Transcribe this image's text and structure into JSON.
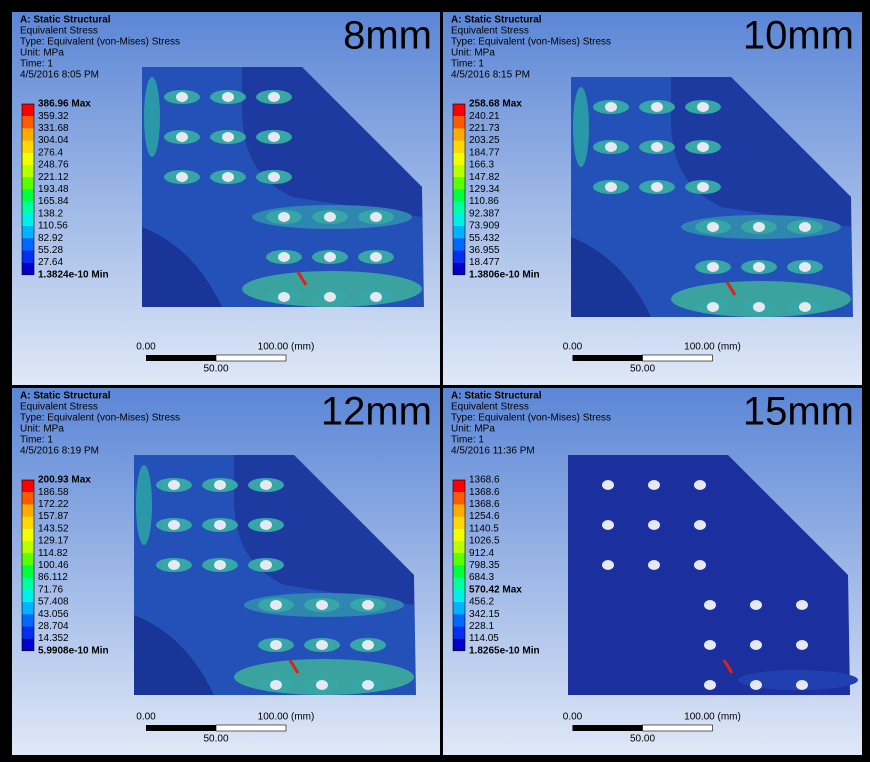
{
  "panels": [
    {
      "header": {
        "title": "A: Static Structural",
        "lines": [
          "Equivalent Stress",
          "Type: Equivalent (von-Mises) Stress",
          "Unit: MPa",
          "Time: 1",
          "4/5/2016 8:05 PM"
        ]
      },
      "label": "8mm",
      "legend": [
        "386.96 Max",
        "359.32",
        "331.68",
        "304.04",
        "276.4",
        "248.76",
        "221.12",
        "193.48",
        "165.84",
        "138.2",
        "110.56",
        "82.92",
        "55.28",
        "27.64",
        "1.3824e-10 Min"
      ],
      "scale": {
        "start": "0.00",
        "end": "100.00 (mm)",
        "mid": "50.00"
      }
    },
    {
      "header": {
        "title": "A: Static Structural",
        "lines": [
          "Equivalent Stress",
          "Type: Equivalent (von-Mises) Stress",
          "Unit: MPa",
          "Time: 1",
          "4/5/2016 8:15 PM"
        ]
      },
      "label": "10mm",
      "legend": [
        "258.68 Max",
        "240.21",
        "221.73",
        "203.25",
        "184.77",
        "166.3",
        "147.82",
        "129.34",
        "110.86",
        "92.387",
        "73.909",
        "55.432",
        "36.955",
        "18.477",
        "1.3806e-10 Min"
      ],
      "scale": {
        "start": "0.00",
        "end": "100.00 (mm)",
        "mid": "50.00"
      }
    },
    {
      "header": {
        "title": "A: Static Structural",
        "lines": [
          "Equivalent Stress",
          "Type: Equivalent (von-Mises) Stress",
          "Unit: MPa",
          "Time: 1",
          "4/5/2016 8:19 PM"
        ]
      },
      "label": "12mm",
      "legend": [
        "200.93 Max",
        "186.58",
        "172.22",
        "157.87",
        "143.52",
        "129.17",
        "114.82",
        "100.46",
        "86.112",
        "71.76",
        "57.408",
        "43.056",
        "28.704",
        "14.352",
        "5.9908e-10 Min"
      ],
      "scale": {
        "start": "0.00",
        "end": "100.00 (mm)",
        "mid": "50.00"
      }
    },
    {
      "header": {
        "title": "A: Static Structural",
        "lines": [
          "Equivalent Stress",
          "Type: Equivalent (von-Mises) Stress",
          "Unit: MPa",
          "Time: 1",
          "4/5/2016 11:36 PM"
        ]
      },
      "label": "15mm",
      "legend": [
        "1368.6",
        "1368.6",
        "1368.6",
        "1254.6",
        "1140.5",
        "1026.5",
        "912.4",
        "798.35",
        "684.3",
        "570.42 Max",
        "456.2",
        "342.15",
        "228.1",
        "114.05",
        "1.8265e-10 Min"
      ],
      "scale": {
        "start": "0.00",
        "end": "100.00 (mm)",
        "mid": "50.00"
      }
    }
  ]
}
